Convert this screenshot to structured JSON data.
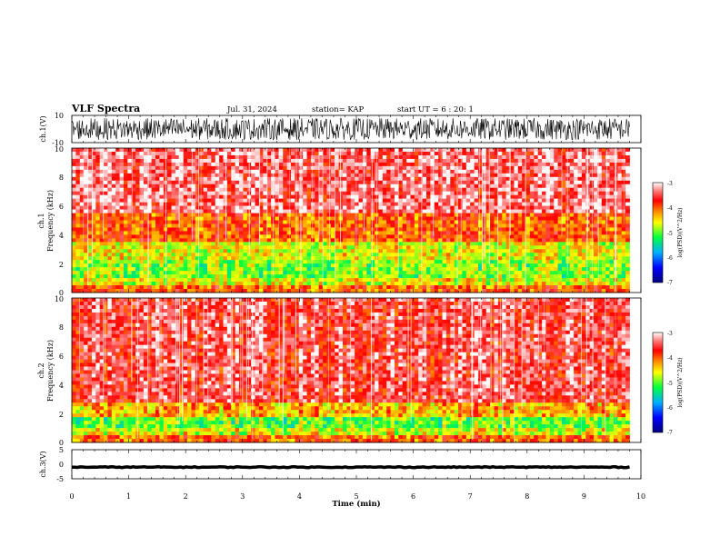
{
  "header": {
    "title": "VLF Spectra",
    "date": "Jul. 31, 2024",
    "station": "station= KAP",
    "start": "start UT =  6 : 20: 1"
  },
  "chart_data": [
    {
      "type": "line",
      "name": "waveform ch.1",
      "ylabel": "ch.1(V)",
      "ylim": [
        -10,
        10
      ],
      "yticks": [
        "10",
        "-10"
      ],
      "xlim": [
        0,
        10
      ],
      "description_values": "noisy waveform spanning roughly -8 to +8 V, data ends at ~9.8 min"
    },
    {
      "type": "heatmap",
      "name": "spectrogram ch.1",
      "ylabel": "ch.1\nFrequency (kHz)",
      "ylabel_lines": [
        "ch.1",
        "Frequency  (kHz)"
      ],
      "ylim": [
        0,
        10
      ],
      "yticks": [
        "0",
        "2",
        "4",
        "6",
        "8",
        "10"
      ],
      "xlim": [
        0,
        10
      ],
      "data_end_min": 9.8,
      "bands_khz": [
        {
          "from": 0,
          "to": 0.4,
          "level": -4.0
        },
        {
          "from": 0.4,
          "to": 1.0,
          "level": -4.6
        },
        {
          "from": 1.0,
          "to": 2.2,
          "level": -4.9
        },
        {
          "from": 2.2,
          "to": 3.4,
          "level": -4.6
        },
        {
          "from": 3.4,
          "to": 5.5,
          "level": -4.0
        },
        {
          "from": 5.5,
          "to": 10,
          "level": -3.4
        }
      ],
      "colorbar": {
        "label": "log(PSD)(V^2/Hz)",
        "ticks": [
          "-3",
          "-4",
          "-5",
          "-6",
          "-7"
        ],
        "range": [
          -7,
          -3
        ]
      }
    },
    {
      "type": "heatmap",
      "name": "spectrogram ch.2",
      "ylabel_lines": [
        "ch.2",
        "Frequency  (kHz)"
      ],
      "ylim": [
        0,
        10
      ],
      "yticks": [
        "0",
        "2",
        "4",
        "6",
        "8",
        "10"
      ],
      "xlim": [
        0,
        10
      ],
      "data_end_min": 9.8,
      "bands_khz": [
        {
          "from": 0,
          "to": 0.4,
          "level": -4.0
        },
        {
          "from": 0.4,
          "to": 1.0,
          "level": -4.6
        },
        {
          "from": 1.0,
          "to": 1.8,
          "level": -5.0
        },
        {
          "from": 1.8,
          "to": 2.8,
          "level": -4.3
        },
        {
          "from": 2.8,
          "to": 10,
          "level": -3.5
        }
      ],
      "colorbar": {
        "label": "log(PSD)(V^2/Hz)",
        "ticks": [
          "-3",
          "-4",
          "-5",
          "-6",
          "-7"
        ],
        "range": [
          -7,
          -3
        ]
      }
    },
    {
      "type": "line",
      "name": "waveform ch.3",
      "ylabel": "ch.3(V)",
      "ylim": [
        -5,
        5
      ],
      "yticks": [
        "5",
        "0",
        "-5"
      ],
      "xlim": [
        0,
        10
      ],
      "description_values": "flat signal near -1 V with small noise"
    }
  ],
  "xaxis": {
    "label": "Time  (min)",
    "ticks": [
      "0",
      "1",
      "2",
      "3",
      "4",
      "5",
      "6",
      "7",
      "8",
      "9",
      "10"
    ]
  },
  "colors": {
    "background": "#ffffff",
    "axis": "#000000"
  }
}
